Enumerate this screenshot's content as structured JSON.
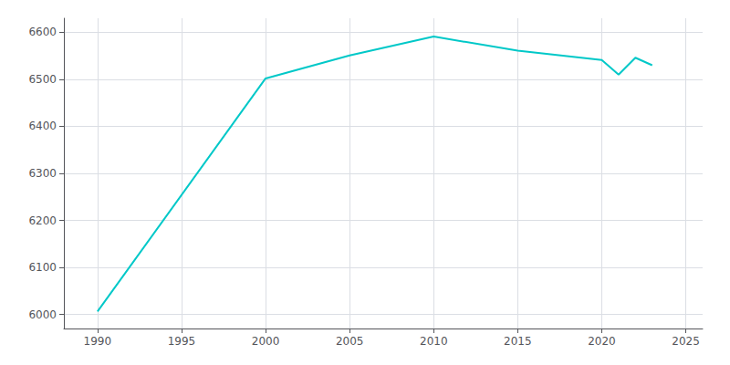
{
  "chart_data": {
    "type": "line",
    "x": [
      1990,
      2000,
      2005,
      2010,
      2015,
      2020,
      2021,
      2022,
      2023
    ],
    "values": [
      6006,
      6502,
      6551,
      6591,
      6561,
      6541,
      6510,
      6546,
      6530
    ],
    "color": "#00C8C8",
    "xlim": [
      1988,
      2026
    ],
    "xticks": [
      1990,
      1995,
      2000,
      2005,
      2010,
      2015,
      2020,
      2025
    ],
    "ylim": [
      5970,
      6630
    ],
    "yticks": [
      6000,
      6100,
      6200,
      6300,
      6400,
      6500,
      6600
    ],
    "grid": true
  }
}
